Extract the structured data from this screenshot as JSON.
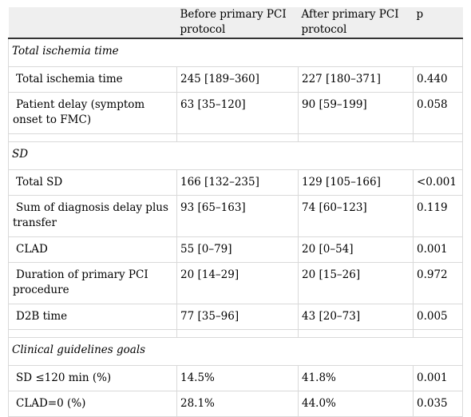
{
  "header": {
    "col_label": "",
    "col_before": "Before primary PCI protocol",
    "col_after": "After primary PCI protocol",
    "col_p": "p"
  },
  "sections": [
    {
      "title": "Total ischemia time",
      "rows": [
        {
          "label": "Total ischemia time",
          "before": "245 [189–360]",
          "after": "227 [180–371]",
          "p": "0.440"
        },
        {
          "label": "Patient delay (symptom onset to FMC)",
          "before": "63 [35–120]",
          "after": "90 [59–199]",
          "p": "0.058"
        }
      ]
    },
    {
      "title": "SD",
      "rows": [
        {
          "label": "Total SD",
          "before": "166 [132–235]",
          "after": "129 [105–166]",
          "p": "<0.001"
        },
        {
          "label": "Sum of diagnosis delay plus transfer",
          "before": "93 [65–163]",
          "after": "74 [60–123]",
          "p": "0.119"
        },
        {
          "label": "CLAD",
          "before": "55 [0–79]",
          "after": "20 [0–54]",
          "p": "0.001"
        },
        {
          "label": "Duration of primary PCI procedure",
          "before": "20 [14–29]",
          "after": "20 [15–26]",
          "p": "0.972"
        },
        {
          "label": "D2B time",
          "before": "77 [35–96]",
          "after": "43 [20–73]",
          "p": "0.005"
        }
      ]
    },
    {
      "title": "Clinical guidelines goals",
      "rows": [
        {
          "label": "SD ≤120 min (%)",
          "before": "14.5%",
          "after": "41.8%",
          "p": "0.001"
        },
        {
          "label": "CLAD=0 (%)",
          "before": "28.1%",
          "after": "44.0%",
          "p": "0.035"
        }
      ]
    }
  ]
}
